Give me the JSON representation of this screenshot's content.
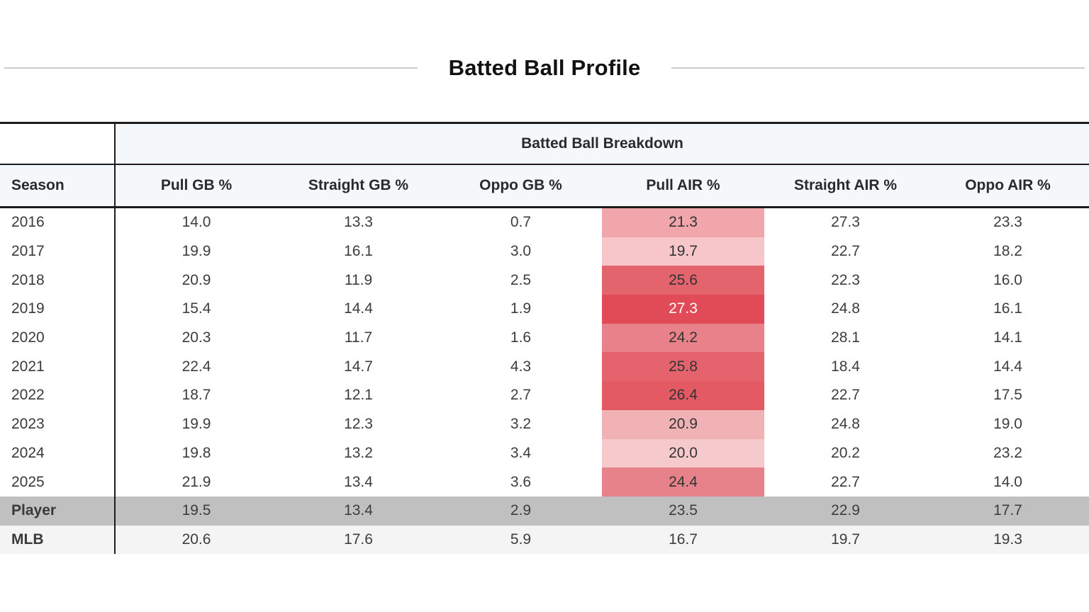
{
  "page": {
    "title": "Batted Ball Profile"
  },
  "colors": {
    "header_bg": "#f4f8fa",
    "table_border": "#1c1c1c",
    "title_divider": "#cccccc",
    "player_row_bg": "#c0c0c0",
    "mlb_row_bg": "#f4f4f5",
    "heat_min": "#f6c9cc",
    "heat_max": "#e14b57"
  },
  "table": {
    "group_header": "Batted Ball Breakdown",
    "columns": [
      "Season",
      "Pull GB %",
      "Straight GB %",
      "Oppo GB %",
      "Pull AIR %",
      "Straight AIR %",
      "Oppo AIR %"
    ],
    "heat_column": "Pull AIR %",
    "rows": [
      {
        "label": "2016",
        "values": [
          "14.0",
          "13.3",
          "0.7",
          "21.3",
          "27.3",
          "23.3"
        ],
        "heat": {
          "col": 3,
          "bg": "#f0a6ab",
          "fg": "#333333"
        }
      },
      {
        "label": "2017",
        "values": [
          "19.9",
          "16.1",
          "3.0",
          "19.7",
          "22.7",
          "18.2"
        ],
        "heat": {
          "col": 3,
          "bg": "#f6c6ca",
          "fg": "#333333"
        }
      },
      {
        "label": "2018",
        "values": [
          "20.9",
          "11.9",
          "2.5",
          "25.6",
          "22.3",
          "16.0"
        ],
        "heat": {
          "col": 3,
          "bg": "#e4646e",
          "fg": "#333333"
        }
      },
      {
        "label": "2019",
        "values": [
          "15.4",
          "14.4",
          "1.9",
          "27.3",
          "24.8",
          "16.1"
        ],
        "heat": {
          "col": 3,
          "bg": "#e14b57",
          "fg": "#ffffff"
        }
      },
      {
        "label": "2020",
        "values": [
          "20.3",
          "11.7",
          "1.6",
          "24.2",
          "28.1",
          "14.1"
        ],
        "heat": {
          "col": 3,
          "bg": "#e9818a",
          "fg": "#333333"
        }
      },
      {
        "label": "2021",
        "values": [
          "22.4",
          "14.7",
          "4.3",
          "25.8",
          "18.4",
          "14.4"
        ],
        "heat": {
          "col": 3,
          "bg": "#e5636d",
          "fg": "#333333"
        }
      },
      {
        "label": "2022",
        "values": [
          "18.7",
          "12.1",
          "2.7",
          "26.4",
          "22.7",
          "17.5"
        ],
        "heat": {
          "col": 3,
          "bg": "#e35a64",
          "fg": "#333333"
        }
      },
      {
        "label": "2023",
        "values": [
          "19.9",
          "12.3",
          "3.2",
          "20.9",
          "24.8",
          "19.0"
        ],
        "heat": {
          "col": 3,
          "bg": "#f1b2b6",
          "fg": "#333333"
        }
      },
      {
        "label": "2024",
        "values": [
          "19.8",
          "13.2",
          "3.4",
          "20.0",
          "20.2",
          "23.2"
        ],
        "heat": {
          "col": 3,
          "bg": "#f6c9cc",
          "fg": "#333333"
        }
      },
      {
        "label": "2025",
        "values": [
          "21.9",
          "13.4",
          "3.6",
          "24.4",
          "22.7",
          "14.0"
        ],
        "heat": {
          "col": 3,
          "bg": "#e8828a",
          "fg": "#333333"
        }
      },
      {
        "label": "Player",
        "values": [
          "19.5",
          "13.4",
          "2.9",
          "23.5",
          "22.9",
          "17.7"
        ],
        "row_bg": "#c0c0c0",
        "bold": true
      },
      {
        "label": "MLB",
        "values": [
          "20.6",
          "17.6",
          "5.9",
          "16.7",
          "19.7",
          "19.3"
        ],
        "row_bg": "#f4f4f5",
        "bold": true
      }
    ]
  },
  "chart_data": {
    "type": "table",
    "title": "Batted Ball Profile",
    "group_header": "Batted Ball Breakdown",
    "columns": [
      "Season",
      "Pull GB %",
      "Straight GB %",
      "Oppo GB %",
      "Pull AIR %",
      "Straight AIR %",
      "Oppo AIR %"
    ],
    "heatmap_column": "Pull AIR %",
    "rows": [
      [
        "2016",
        14.0,
        13.3,
        0.7,
        21.3,
        27.3,
        23.3
      ],
      [
        "2017",
        19.9,
        16.1,
        3.0,
        19.7,
        22.7,
        18.2
      ],
      [
        "2018",
        20.9,
        11.9,
        2.5,
        25.6,
        22.3,
        16.0
      ],
      [
        "2019",
        15.4,
        14.4,
        1.9,
        27.3,
        24.8,
        16.1
      ],
      [
        "2020",
        20.3,
        11.7,
        1.6,
        24.2,
        28.1,
        14.1
      ],
      [
        "2021",
        22.4,
        14.7,
        4.3,
        25.8,
        18.4,
        14.4
      ],
      [
        "2022",
        18.7,
        12.1,
        2.7,
        26.4,
        22.7,
        17.5
      ],
      [
        "2023",
        19.9,
        12.3,
        3.2,
        20.9,
        24.8,
        19.0
      ],
      [
        "2024",
        19.8,
        13.2,
        3.4,
        20.0,
        20.2,
        23.2
      ],
      [
        "2025",
        21.9,
        13.4,
        3.6,
        24.4,
        22.7,
        14.0
      ],
      [
        "Player",
        19.5,
        13.4,
        2.9,
        23.5,
        22.9,
        17.7
      ],
      [
        "MLB",
        20.6,
        17.6,
        5.9,
        16.7,
        19.7,
        19.3
      ]
    ]
  }
}
